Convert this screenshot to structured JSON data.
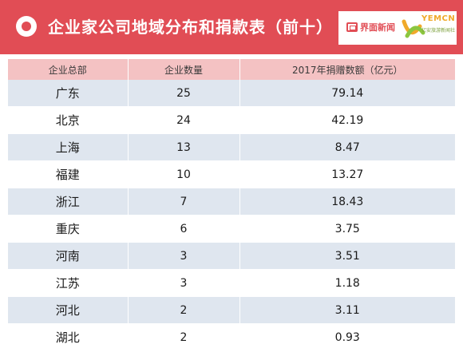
{
  "header": {
    "title": "企业家公司地域分布和捐款表（前十）",
    "accent_color": "#e14d55",
    "logo_jiemian_text": "界面新闻",
    "logo_yicai_text": "YEMCN",
    "logo_yicai_sub": "亿安旅游新闻社"
  },
  "table": {
    "columns": [
      "企业总部",
      "企业数量",
      "2017年捐赠数额（亿元）"
    ],
    "rows": [
      {
        "region": "广东",
        "count": "25",
        "amount": "79.14"
      },
      {
        "region": "北京",
        "count": "24",
        "amount": "42.19"
      },
      {
        "region": "上海",
        "count": "13",
        "amount": "8.47"
      },
      {
        "region": "福建",
        "count": "10",
        "amount": "13.27"
      },
      {
        "region": "浙江",
        "count": "7",
        "amount": "18.43"
      },
      {
        "region": "重庆",
        "count": "6",
        "amount": "3.75"
      },
      {
        "region": "河南",
        "count": "3",
        "amount": "3.51"
      },
      {
        "region": "江苏",
        "count": "3",
        "amount": "1.18"
      },
      {
        "region": "河北",
        "count": "2",
        "amount": "3.11"
      },
      {
        "region": "湖北",
        "count": "2",
        "amount": "0.93"
      }
    ]
  }
}
